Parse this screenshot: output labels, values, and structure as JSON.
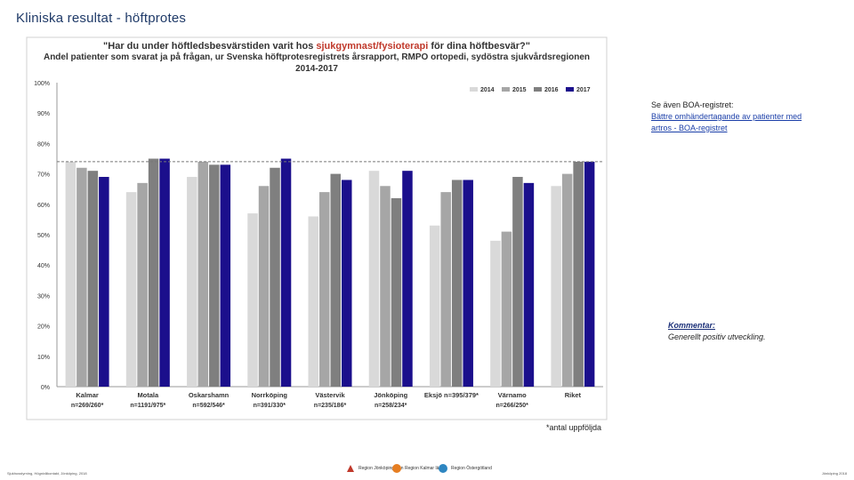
{
  "slide_title": "Kliniska resultat - höftprotes",
  "side_note": {
    "intro": "Se även BOA-registret:",
    "link": "Bättre omhändertagande av patienter med artros - BOA-registret"
  },
  "comment": {
    "heading": "Kommentar:",
    "text": "Generellt positiv utveckling."
  },
  "footnote": "*antal uppföljda",
  "footer_left": "Sjukhusstyrning, Högnivåkontakt, Jönköping, 2018",
  "footer_right": "Jönköping 2018",
  "logos": [
    "Region Jönköpings län",
    "Region Kalmar län",
    "Region Östergötland"
  ],
  "colors": {
    "s2014": "#d9d9d9",
    "s2015": "#a6a6a6",
    "s2016": "#7f7f7f",
    "s2017": "#1b0f8c",
    "reference_line": "#777777",
    "title_accent": "#c0392b"
  },
  "chart_data": {
    "type": "bar",
    "title_line1_pre": "\"Har du under höftledsbesvärstiden varit hos ",
    "title_line1_highlight": "sjukgymnast/fysioterapi",
    "title_line1_post": " för dina höftbesvär?\"",
    "title_line2": "Andel patienter som svarat ja på frågan, ur Svenska höftprotesregistrets årsrapport, RMPO ortopedi, sydöstra sjukvårdsregionen",
    "title_line3": "2014-2017",
    "categories": [
      "Kalmar",
      "Motala",
      "Oskarshamn",
      "Norrköping",
      "Västervik",
      "Jönköping",
      "Eksjö n=395/379*",
      "Värnamo",
      "Riket"
    ],
    "sublabels": [
      "n=269/260*",
      "n=1191/975*",
      "n=592/546*",
      "n=391/330*",
      "n=235/186*",
      "n=258/234*",
      "",
      "n=266/250*",
      ""
    ],
    "series": [
      {
        "name": "2014",
        "values": [
          74,
          64,
          69,
          57,
          56,
          71,
          53,
          48,
          66
        ]
      },
      {
        "name": "2015",
        "values": [
          72,
          67,
          74,
          66,
          64,
          66,
          64,
          51,
          70
        ]
      },
      {
        "name": "2016",
        "values": [
          71,
          75,
          73,
          72,
          70,
          62,
          68,
          69,
          74
        ]
      },
      {
        "name": "2017",
        "values": [
          69,
          75,
          73,
          75,
          68,
          71,
          68,
          67,
          74
        ]
      }
    ],
    "reference_value": 74,
    "yticks": [
      "0%",
      "10%",
      "20%",
      "30%",
      "40%",
      "50%",
      "60%",
      "70%",
      "80%",
      "90%",
      "100%"
    ],
    "ylim": [
      0,
      100
    ],
    "legend_position": "top-right"
  }
}
